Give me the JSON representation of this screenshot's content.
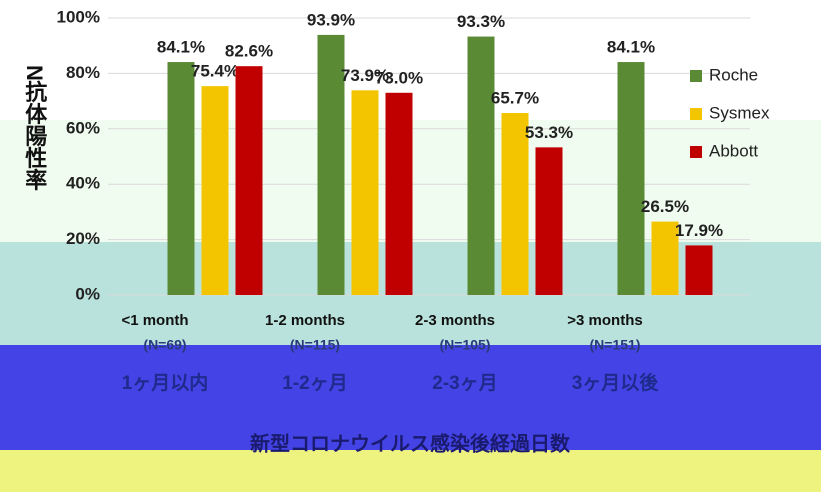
{
  "chart_data": {
    "type": "bar",
    "ylabel": "N抗体陽性率",
    "xlabel": "新型コロナウイルス感染後経過日数",
    "categories": [
      "<1 month",
      "1-2 months",
      "2-3 months",
      ">3 months"
    ],
    "subcategories": [
      "(N=69)",
      "(N=115)",
      "(N=105)",
      "(N=151)"
    ],
    "categories_ja": [
      "1ヶ月以内",
      "1-2ヶ月",
      "2-3ヶ月",
      "3ヶ月以後"
    ],
    "series": [
      {
        "name": "Roche",
        "color": "#5b8a35",
        "values": [
          84.1,
          93.9,
          93.3,
          84.1
        ],
        "value_labels": [
          "84.1%",
          "93.9%",
          "93.3%",
          "84.1%"
        ]
      },
      {
        "name": "Sysmex",
        "color": "#f2c500",
        "values": [
          75.4,
          73.9,
          65.7,
          26.5
        ],
        "value_labels": [
          "75.4%",
          "73.9%",
          "65.7%",
          "26.5%"
        ]
      },
      {
        "name": "Abbott",
        "color": "#c00000",
        "values": [
          82.6,
          73.0,
          53.3,
          17.9
        ],
        "value_labels": [
          "82.6%",
          "73.0%",
          "53.3%",
          "17.9%"
        ]
      }
    ],
    "ylim": [
      0,
      100
    ],
    "yticks": [
      {
        "value": 0,
        "label": "0%"
      },
      {
        "value": 20,
        "label": "20%"
      },
      {
        "value": 40,
        "label": "40%"
      },
      {
        "value": 60,
        "label": "60%"
      },
      {
        "value": 80,
        "label": "80%"
      },
      {
        "value": 100,
        "label": "100%"
      }
    ],
    "grid": true,
    "legend": "right"
  }
}
